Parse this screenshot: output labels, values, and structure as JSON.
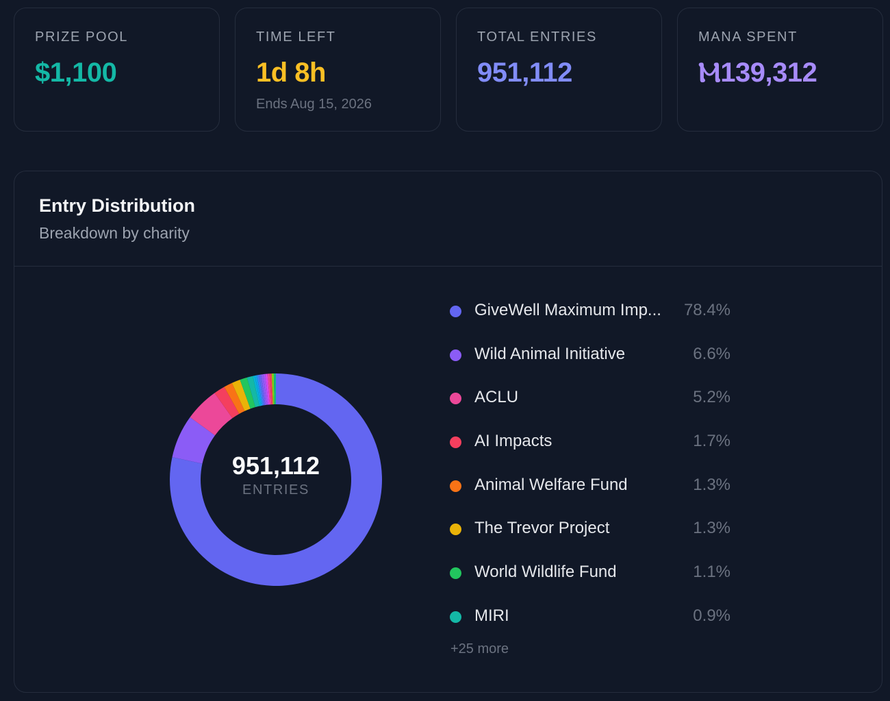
{
  "stats": {
    "prize_pool": {
      "label": "PRIZE POOL",
      "value": "$1,100",
      "color": "#14b8a6"
    },
    "time_left": {
      "label": "TIME LEFT",
      "value": "1d 8h",
      "sub": "Ends Aug 15, 2026",
      "color": "#fbbf24"
    },
    "total_entries": {
      "label": "TOTAL ENTRIES",
      "value": "951,112",
      "color": "#818cf8"
    },
    "mana_spent": {
      "label": "MANA SPENT",
      "value": "Ⲙ139,312",
      "color": "#a78bfa"
    }
  },
  "distribution": {
    "title": "Entry Distribution",
    "subtitle": "Breakdown by charity",
    "total": "951,112",
    "total_unit": "ENTRIES",
    "more": "+25 more",
    "legend": [
      {
        "name": "GiveWell Maximum Imp...",
        "pct": "78.4%",
        "color": "#6366f1"
      },
      {
        "name": "Wild Animal Initiative",
        "pct": "6.6%",
        "color": "#8b5cf6"
      },
      {
        "name": "ACLU",
        "pct": "5.2%",
        "color": "#ec4899"
      },
      {
        "name": "AI Impacts",
        "pct": "1.7%",
        "color": "#f43f5e"
      },
      {
        "name": "Animal Welfare Fund",
        "pct": "1.3%",
        "color": "#f97316"
      },
      {
        "name": "The Trevor Project",
        "pct": "1.3%",
        "color": "#eab308"
      },
      {
        "name": "World Wildlife Fund",
        "pct": "1.1%",
        "color": "#22c55e"
      },
      {
        "name": "MIRI",
        "pct": "0.9%",
        "color": "#14b8a6"
      }
    ]
  },
  "chart_data": {
    "type": "pie",
    "categories": [
      "GiveWell Maximum Imp...",
      "Wild Animal Initiative",
      "ACLU",
      "AI Impacts",
      "Animal Welfare Fund",
      "The Trevor Project",
      "World Wildlife Fund",
      "MIRI"
    ],
    "values": [
      78.4,
      6.6,
      5.2,
      1.7,
      1.3,
      1.3,
      1.1,
      0.9
    ],
    "colors": [
      "#6366f1",
      "#8b5cf6",
      "#ec4899",
      "#f43f5e",
      "#f97316",
      "#eab308",
      "#22c55e",
      "#14b8a6"
    ],
    "remainder_colors": [
      "#06b6d4",
      "#0ea5e9",
      "#3b82f6",
      "#6366f1",
      "#8b5cf6",
      "#a855f7",
      "#d946ef",
      "#ec4899",
      "#f43f5e",
      "#84cc16",
      "#10b981"
    ],
    "center_label": "951,112",
    "center_sublabel": "ENTRIES"
  }
}
